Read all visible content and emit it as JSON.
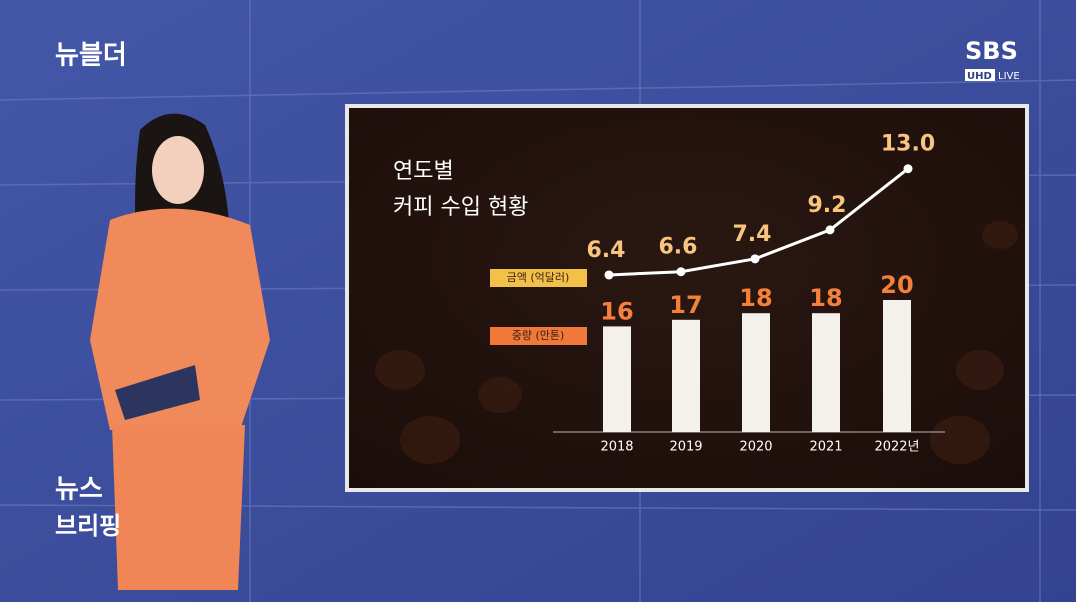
{
  "header": {
    "program": "뉴블더",
    "channel": "SBS",
    "badge": "UHD",
    "live": "LIVE"
  },
  "corner": {
    "line1": "뉴스",
    "line2": "브리핑"
  },
  "chart_data": {
    "type": "bar",
    "title": [
      "연도별",
      "커피 수입 현황"
    ],
    "categories": [
      "2018",
      "2019",
      "2020",
      "2021",
      "2022년"
    ],
    "series": [
      {
        "name": "금액 (억달러)",
        "type": "line",
        "color": "#ffffff",
        "legend_color": "#f3c04a",
        "label_color": "#f9c57e",
        "values": [
          6.4,
          6.6,
          7.4,
          9.2,
          13.0
        ],
        "value_labels": [
          "6.4",
          "6.6",
          "7.4",
          "9.2",
          "13.0"
        ]
      },
      {
        "name": "중량 (만톤)",
        "type": "bar",
        "color": "#f4f1ec",
        "legend_color": "#f0793a",
        "label_color": "#f5803a",
        "values": [
          16,
          17,
          18,
          18,
          20
        ]
      }
    ]
  }
}
